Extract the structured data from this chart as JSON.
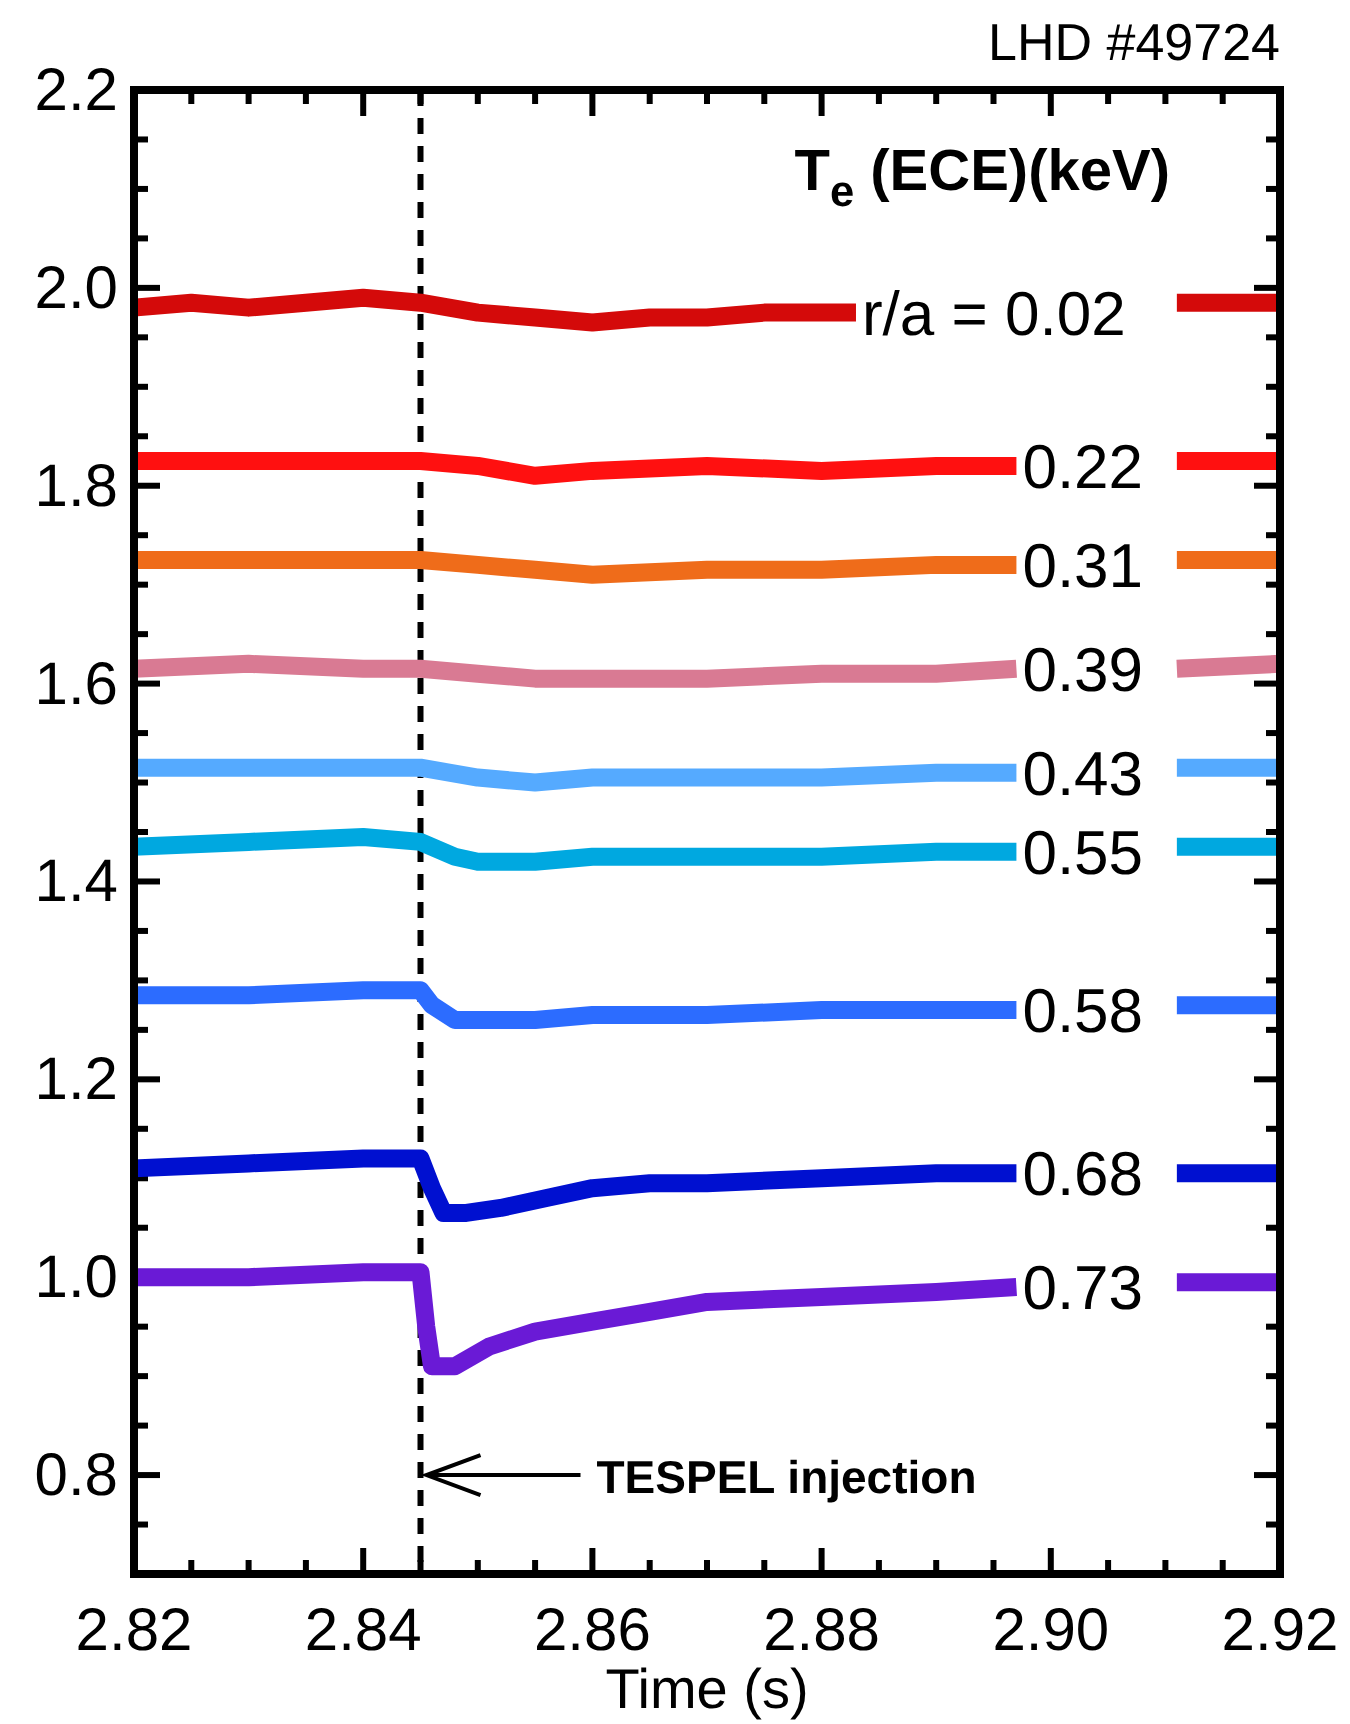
{
  "chart_data": {
    "type": "line",
    "title": "LHD #49724",
    "xlabel": "Time (s)",
    "ylabel": "T$_{e}$ (ECE)(keV)",
    "xlim": [
      2.82,
      2.92
    ],
    "ylim": [
      0.7,
      2.2
    ],
    "xticks": [
      2.82,
      {
        "value": 2.825,
        "label": null
      },
      {
        "value": 2.83,
        "label": null
      },
      {
        "value": 2.835,
        "label": null
      },
      2.84,
      {
        "value": 2.845,
        "label": null
      },
      {
        "value": 2.85,
        "label": null
      },
      {
        "value": 2.855,
        "label": null
      },
      2.86,
      {
        "value": 2.865,
        "label": null
      },
      {
        "value": 2.87,
        "label": null
      },
      {
        "value": 2.875,
        "label": null
      },
      2.88,
      {
        "value": 2.885,
        "label": null
      },
      {
        "value": 2.89,
        "label": null
      },
      {
        "value": 2.895,
        "label": null
      },
      {
        "value": 2.9,
        "label": "2.90"
      },
      {
        "value": 2.905,
        "label": null
      },
      {
        "value": 2.91,
        "label": null
      },
      {
        "value": 2.915,
        "label": null
      },
      2.92
    ],
    "yticks": [
      {
        "value": 0.75,
        "label": null
      },
      0.8,
      {
        "value": 0.85,
        "label": null
      },
      {
        "value": 0.9,
        "label": null
      },
      {
        "value": 0.95,
        "label": null
      },
      {
        "value": 1.0,
        "label": "1.0"
      },
      {
        "value": 1.05,
        "label": null
      },
      {
        "value": 1.1,
        "label": null
      },
      {
        "value": 1.15,
        "label": null
      },
      1.2,
      {
        "value": 1.25,
        "label": null
      },
      {
        "value": 1.3,
        "label": null
      },
      {
        "value": 1.35,
        "label": null
      },
      1.4,
      {
        "value": 1.45,
        "label": null
      },
      {
        "value": 1.5,
        "label": null
      },
      {
        "value": 1.55,
        "label": null
      },
      1.6,
      {
        "value": 1.65,
        "label": null
      },
      {
        "value": 1.7,
        "label": null
      },
      {
        "value": 1.75,
        "label": null
      },
      1.8,
      {
        "value": 1.85,
        "label": null
      },
      {
        "value": 1.9,
        "label": null
      },
      {
        "value": 1.95,
        "label": null
      },
      {
        "value": 2.0,
        "label": "2.0"
      },
      {
        "value": 2.05,
        "label": null
      },
      {
        "value": 2.1,
        "label": null
      },
      {
        "value": 2.15,
        "label": null
      },
      2.2
    ],
    "grid": false,
    "line_style": "solid",
    "marker": "none",
    "ref_lines": [
      {
        "axis": "x",
        "value": 2.845,
        "label": null,
        "color": "#000000",
        "line_style": "dashed"
      }
    ],
    "annotations": [
      {
        "text": "TESPEL injection",
        "x": 2.845,
        "y": 0.8
      }
    ],
    "series": [
      {
        "name": "r/a = 0.02",
        "color": "#d40a0a",
        "x": [
          2.82,
          2.825,
          2.83,
          2.835,
          2.84,
          2.845,
          2.85,
          2.855,
          2.86,
          2.865,
          2.87,
          2.875,
          2.883,
          2.9,
          2.911,
          2.92
        ],
        "values": [
          1.98,
          1.985,
          1.98,
          1.985,
          1.99,
          1.985,
          1.975,
          1.97,
          1.965,
          1.97,
          1.97,
          1.975,
          1.975,
          null,
          1.985,
          1.985
        ]
      },
      {
        "name": "0.22",
        "color": "#ff1010",
        "x": [
          2.82,
          2.83,
          2.84,
          2.845,
          2.85,
          2.855,
          2.86,
          2.87,
          2.88,
          2.89,
          2.897,
          2.905,
          2.911,
          2.92
        ],
        "values": [
          1.825,
          1.825,
          1.825,
          1.825,
          1.82,
          1.81,
          1.815,
          1.82,
          1.815,
          1.82,
          1.82,
          null,
          1.825,
          1.825
        ]
      },
      {
        "name": "0.31",
        "color": "#ef6c1a",
        "x": [
          2.82,
          2.83,
          2.84,
          2.845,
          2.85,
          2.855,
          2.86,
          2.87,
          2.88,
          2.89,
          2.897,
          2.905,
          2.911,
          2.92
        ],
        "values": [
          1.725,
          1.725,
          1.725,
          1.725,
          1.72,
          1.715,
          1.71,
          1.715,
          1.715,
          1.72,
          1.72,
          null,
          1.725,
          1.725
        ]
      },
      {
        "name": "0.39",
        "color": "#d97a93",
        "x": [
          2.82,
          2.83,
          2.84,
          2.845,
          2.85,
          2.855,
          2.86,
          2.87,
          2.88,
          2.89,
          2.897,
          2.905,
          2.911,
          2.92
        ],
        "values": [
          1.615,
          1.62,
          1.615,
          1.615,
          1.61,
          1.605,
          1.605,
          1.605,
          1.61,
          1.61,
          1.615,
          null,
          1.615,
          1.62
        ]
      },
      {
        "name": "0.43",
        "color": "#55aaff",
        "x": [
          2.82,
          2.83,
          2.84,
          2.845,
          2.85,
          2.855,
          2.86,
          2.87,
          2.88,
          2.89,
          2.897,
          2.905,
          2.911,
          2.92
        ],
        "values": [
          1.515,
          1.515,
          1.515,
          1.515,
          1.505,
          1.5,
          1.505,
          1.505,
          1.505,
          1.51,
          1.51,
          null,
          1.515,
          1.515
        ]
      },
      {
        "name": "0.55",
        "color": "#00a8e0",
        "x": [
          2.82,
          2.83,
          2.84,
          2.845,
          2.848,
          2.85,
          2.855,
          2.86,
          2.87,
          2.88,
          2.89,
          2.897,
          2.905,
          2.911,
          2.92
        ],
        "values": [
          1.435,
          1.44,
          1.445,
          1.44,
          1.425,
          1.42,
          1.42,
          1.425,
          1.425,
          1.425,
          1.43,
          1.43,
          null,
          1.435,
          1.435
        ]
      },
      {
        "name": "0.58",
        "color": "#2c6cff",
        "x": [
          2.82,
          2.83,
          2.84,
          2.845,
          2.846,
          2.848,
          2.85,
          2.855,
          2.86,
          2.87,
          2.88,
          2.89,
          2.897,
          2.905,
          2.911,
          2.92
        ],
        "values": [
          1.285,
          1.285,
          1.29,
          1.29,
          1.275,
          1.26,
          1.26,
          1.26,
          1.265,
          1.265,
          1.27,
          1.27,
          1.27,
          null,
          1.275,
          1.275
        ]
      },
      {
        "name": "0.68",
        "color": "#0010d0",
        "x": [
          2.82,
          2.83,
          2.84,
          2.845,
          2.846,
          2.847,
          2.849,
          2.852,
          2.856,
          2.86,
          2.865,
          2.87,
          2.88,
          2.89,
          2.897,
          2.905,
          2.911,
          2.92
        ],
        "values": [
          1.11,
          1.115,
          1.12,
          1.12,
          1.09,
          1.065,
          1.065,
          1.07,
          1.08,
          1.09,
          1.095,
          1.095,
          1.1,
          1.105,
          1.105,
          null,
          1.105,
          1.105
        ]
      },
      {
        "name": "0.73",
        "color": "#6a1ad6",
        "x": [
          2.82,
          2.83,
          2.84,
          2.845,
          2.8455,
          2.846,
          2.848,
          2.851,
          2.855,
          2.86,
          2.865,
          2.87,
          2.88,
          2.89,
          2.897,
          2.905,
          2.911,
          2.92
        ],
        "values": [
          1.0,
          1.0,
          1.005,
          1.005,
          0.95,
          0.91,
          0.91,
          0.93,
          0.945,
          0.955,
          0.965,
          0.975,
          0.98,
          0.985,
          0.99,
          null,
          0.995,
          0.995
        ]
      }
    ]
  }
}
